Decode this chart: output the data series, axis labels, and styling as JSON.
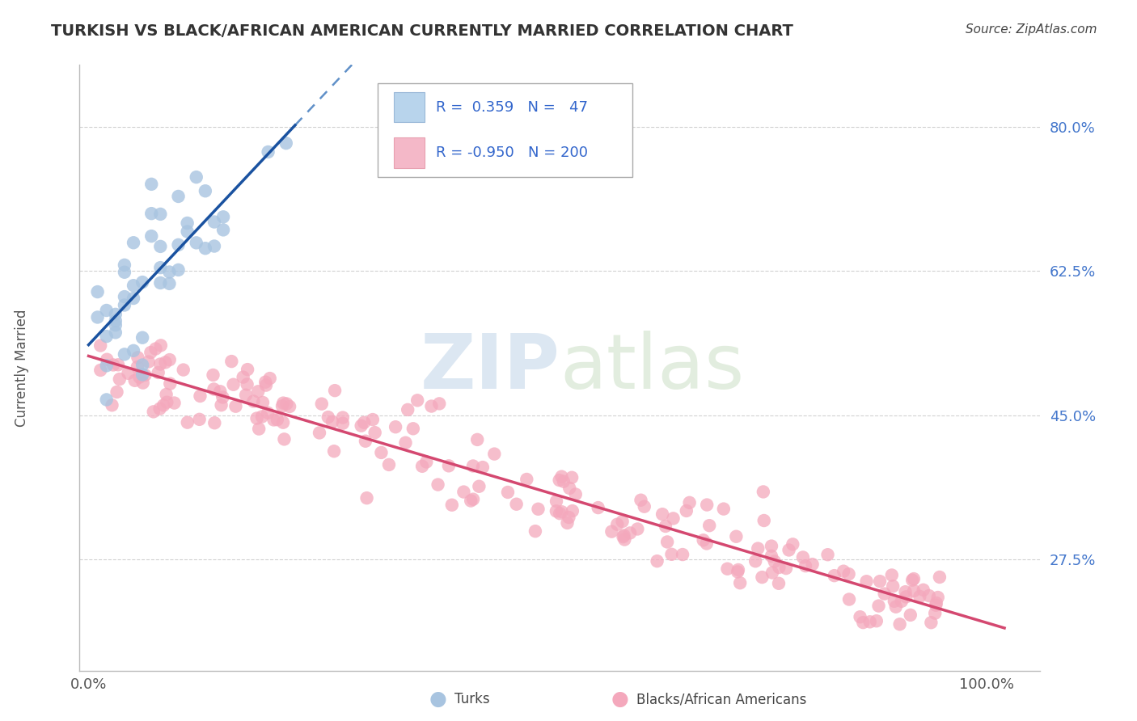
{
  "title": "TURKISH VS BLACK/AFRICAN AMERICAN CURRENTLY MARRIED CORRELATION CHART",
  "source_text": "Source: ZipAtlas.com",
  "ylabel": "Currently Married",
  "y_ticks": [
    0.275,
    0.45,
    0.625,
    0.8
  ],
  "y_tick_labels": [
    "27.5%",
    "45.0%",
    "62.5%",
    "80.0%"
  ],
  "y_lim": [
    0.14,
    0.875
  ],
  "x_lim": [
    -0.01,
    1.06
  ],
  "turks_scatter_color": "#a8c4e0",
  "turks_line_color": "#1a52a0",
  "turks_line_dash_color": "#6090c8",
  "blacks_scatter_color": "#f4a8bc",
  "blacks_line_color": "#d44870",
  "background_color": "#ffffff",
  "grid_color": "#cccccc",
  "legend_turks_box_color": "#b8d4ec",
  "legend_blacks_box_color": "#f4b8c8",
  "R_turks_text": "R =  0.359   N =   47",
  "R_blacks_text": "R = -0.950   N = 200",
  "legend_text_color": "#3366cc",
  "watermark_zip_color": "#c0d4e8",
  "watermark_atlas_color": "#c0d8b8",
  "bottom_legend_turks": "Turks",
  "bottom_legend_blacks": "Blacks/African Americans",
  "title_color": "#333333",
  "source_color": "#444444",
  "ytick_color": "#4477cc",
  "xtick_color": "#555555",
  "ylabel_color": "#555555"
}
